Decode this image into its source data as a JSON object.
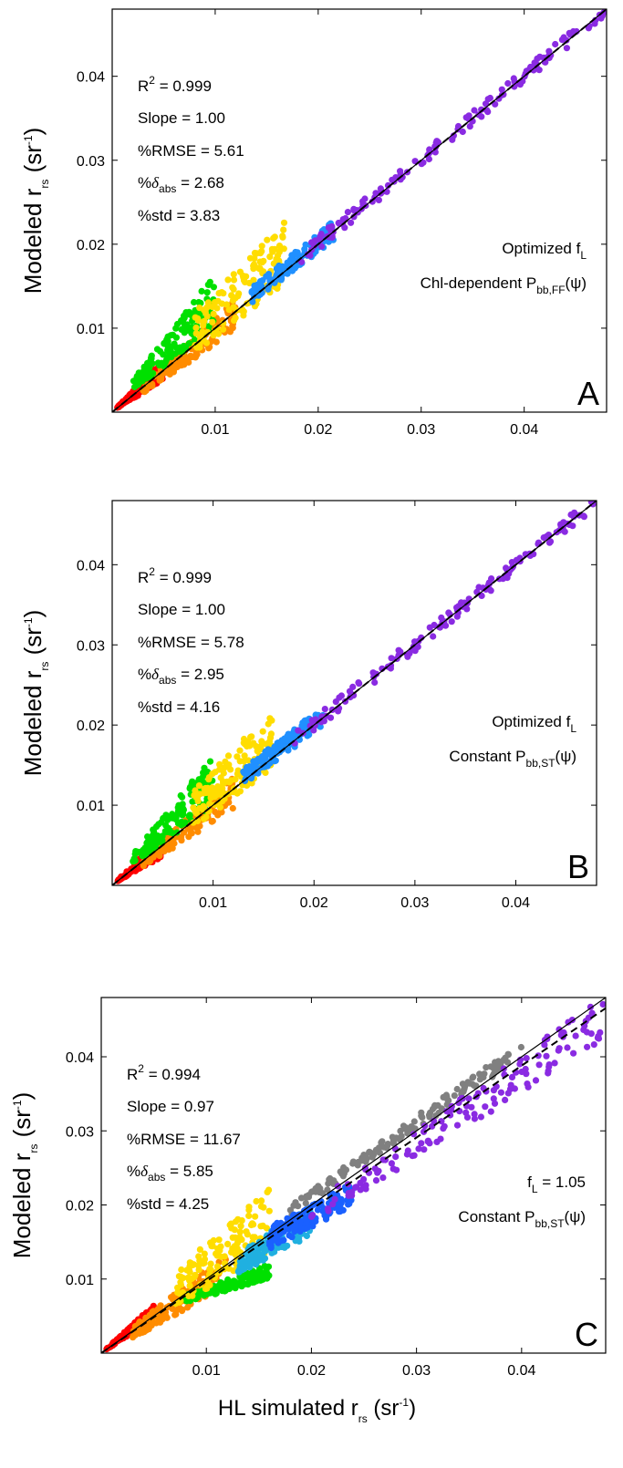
{
  "chart_data": [
    {
      "type": "scatter",
      "panel_label": "A",
      "ylabel": {
        "main": "Modeled r",
        "sub": "rs",
        "unit_pre": " (sr",
        "unit_sup": "-1",
        "unit_post": ")"
      },
      "xlabel": null,
      "xlim": [
        0,
        0.048
      ],
      "ylim": [
        0,
        0.048
      ],
      "xticks": [
        "0.01",
        "0.02",
        "0.03",
        "0.04"
      ],
      "yticks": [
        "0.01",
        "0.02",
        "0.03",
        "0.04"
      ],
      "stats": {
        "r2": "= 0.999",
        "slope": "Slope = 1.00",
        "rmse": "%RMSE = 5.61",
        "dabs": "= 2.68",
        "std": "%std = 3.83"
      },
      "model_line1": {
        "main": "Optimized f",
        "sub": "L",
        "post": ""
      },
      "model_line2": {
        "main": "Chl-dependent P",
        "sub": "bb,FF",
        "post": "(ψ)"
      },
      "lines": {
        "one_to_one": "solid",
        "regression": "dashed",
        "regression_slope": 1.0
      },
      "scatter_groups": [
        {
          "color": "#ff0000",
          "x": [
            0.0005,
            0.005
          ],
          "y_low": [
            0.0005,
            0.0038
          ],
          "y_high": [
            0.0006,
            0.0062
          ]
        },
        {
          "color": "#ff8c00",
          "x": [
            0.003,
            0.012
          ],
          "y_low": [
            0.0022,
            0.0098
          ],
          "y_high": [
            0.0034,
            0.0135
          ]
        },
        {
          "color": "#00e000",
          "x": [
            0.002,
            0.01
          ],
          "y_low": [
            0.0026,
            0.01
          ],
          "y_high": [
            0.0038,
            0.0165
          ]
        },
        {
          "color": "#ffdd00",
          "x": [
            0.008,
            0.0168
          ],
          "y_low": [
            0.0072,
            0.015
          ],
          "y_high": [
            0.012,
            0.0228
          ]
        },
        {
          "color": "#2090ff",
          "x": [
            0.0135,
            0.0215
          ],
          "y_low": [
            0.013,
            0.0205
          ],
          "y_high": [
            0.0148,
            0.0228
          ]
        },
        {
          "color": "#8a2be2",
          "x": [
            0.018,
            0.0478
          ],
          "y_low": [
            0.0174,
            0.047
          ],
          "y_high": [
            0.019,
            0.0486
          ]
        }
      ]
    },
    {
      "type": "scatter",
      "panel_label": "B",
      "ylabel": {
        "main": "Modeled r",
        "sub": "rs",
        "unit_pre": " (sr",
        "unit_sup": "-1",
        "unit_post": ")"
      },
      "xlabel": null,
      "xlim": [
        0,
        0.048
      ],
      "ylim": [
        0,
        0.048
      ],
      "xticks": [
        "0.01",
        "0.02",
        "0.03",
        "0.04"
      ],
      "yticks": [
        "0.01",
        "0.02",
        "0.03",
        "0.04"
      ],
      "stats": {
        "r2": "= 0.999",
        "slope": "Slope = 1.00",
        "rmse": "%RMSE = 5.78",
        "dabs": "= 2.95",
        "std": "%std = 4.16"
      },
      "model_line1": {
        "main": "Optimized f",
        "sub": "L",
        "post": ""
      },
      "model_line2": {
        "main": "Constant P",
        "sub": "bb,ST",
        "post": "(ψ)"
      },
      "lines": {
        "one_to_one": "solid",
        "regression": "dashed",
        "regression_slope": 1.0
      },
      "scatter_groups": [
        {
          "color": "#ff0000",
          "x": [
            0.0005,
            0.005
          ],
          "y_low": [
            0.0005,
            0.0036
          ],
          "y_high": [
            0.0006,
            0.0062
          ]
        },
        {
          "color": "#ff8c00",
          "x": [
            0.003,
            0.012
          ],
          "y_low": [
            0.0022,
            0.0095
          ],
          "y_high": [
            0.0034,
            0.0135
          ]
        },
        {
          "color": "#00e000",
          "x": [
            0.002,
            0.01
          ],
          "y_low": [
            0.0026,
            0.0098
          ],
          "y_high": [
            0.0038,
            0.0162
          ]
        },
        {
          "color": "#ffdd00",
          "x": [
            0.008,
            0.016
          ],
          "y_low": [
            0.007,
            0.0148
          ],
          "y_high": [
            0.0118,
            0.0225
          ]
        },
        {
          "color": "#2090ff",
          "x": [
            0.013,
            0.021
          ],
          "y_low": [
            0.0125,
            0.02
          ],
          "y_high": [
            0.0145,
            0.0225
          ]
        },
        {
          "color": "#8a2be2",
          "x": [
            0.018,
            0.0478
          ],
          "y_low": [
            0.0172,
            0.047
          ],
          "y_high": [
            0.019,
            0.0486
          ]
        }
      ]
    },
    {
      "type": "scatter",
      "panel_label": "C",
      "ylabel": {
        "main": "Modeled r",
        "sub": "rs",
        "unit_pre": " (sr",
        "unit_sup": "-1",
        "unit_post": ")"
      },
      "xlabel": {
        "main": "HL simulated r",
        "sub": "rs",
        "unit_pre": " (sr",
        "unit_sup": "-1",
        "unit_post": ")"
      },
      "xlim": [
        0,
        0.048
      ],
      "ylim": [
        0,
        0.048
      ],
      "xticks": [
        "0.01",
        "0.02",
        "0.03",
        "0.04"
      ],
      "yticks": [
        "0.01",
        "0.02",
        "0.03",
        "0.04"
      ],
      "stats": {
        "r2": "= 0.994",
        "slope": "Slope = 0.97",
        "rmse": "%RMSE = 11.67",
        "dabs": "= 5.85",
        "std": "%std = 4.25"
      },
      "model_line1": {
        "main": "f",
        "sub": "L",
        "post": " = 1.05"
      },
      "model_line2": {
        "main": "Constant P",
        "sub": "bb,ST",
        "post": "(ψ)"
      },
      "lines": {
        "one_to_one": "solid",
        "regression": "dashed",
        "regression_slope": 0.97
      },
      "scatter_groups": [
        {
          "color": "#808080",
          "x": [
            0.018,
            0.04
          ],
          "y_low": [
            0.0185,
            0.04
          ],
          "y_high": [
            0.02,
            0.042
          ]
        },
        {
          "color": "#ff0000",
          "x": [
            0.0005,
            0.005
          ],
          "y_low": [
            0.0005,
            0.0045
          ],
          "y_high": [
            0.0006,
            0.0065
          ]
        },
        {
          "color": "#ff8c00",
          "x": [
            0.003,
            0.012
          ],
          "y_low": [
            0.002,
            0.009
          ],
          "y_high": [
            0.0035,
            0.0135
          ]
        },
        {
          "color": "#00e000",
          "x": [
            0.008,
            0.016
          ],
          "y_low": [
            0.0068,
            0.01
          ],
          "y_high": [
            0.0078,
            0.012
          ]
        },
        {
          "color": "#ffdd00",
          "x": [
            0.007,
            0.016
          ],
          "y_low": [
            0.0065,
            0.013
          ],
          "y_high": [
            0.011,
            0.0222
          ]
        },
        {
          "color": "#20b0e0",
          "x": [
            0.013,
            0.02
          ],
          "y_low": [
            0.0105,
            0.016
          ],
          "y_high": [
            0.0135,
            0.02
          ]
        },
        {
          "color": "#1a60ff",
          "x": [
            0.016,
            0.024
          ],
          "y_low": [
            0.014,
            0.02
          ],
          "y_high": [
            0.017,
            0.023
          ]
        },
        {
          "color": "#8a2be2",
          "x": [
            0.02,
            0.0478
          ],
          "y_low": [
            0.0175,
            0.042
          ],
          "y_high": [
            0.02,
            0.0482
          ]
        }
      ]
    }
  ]
}
